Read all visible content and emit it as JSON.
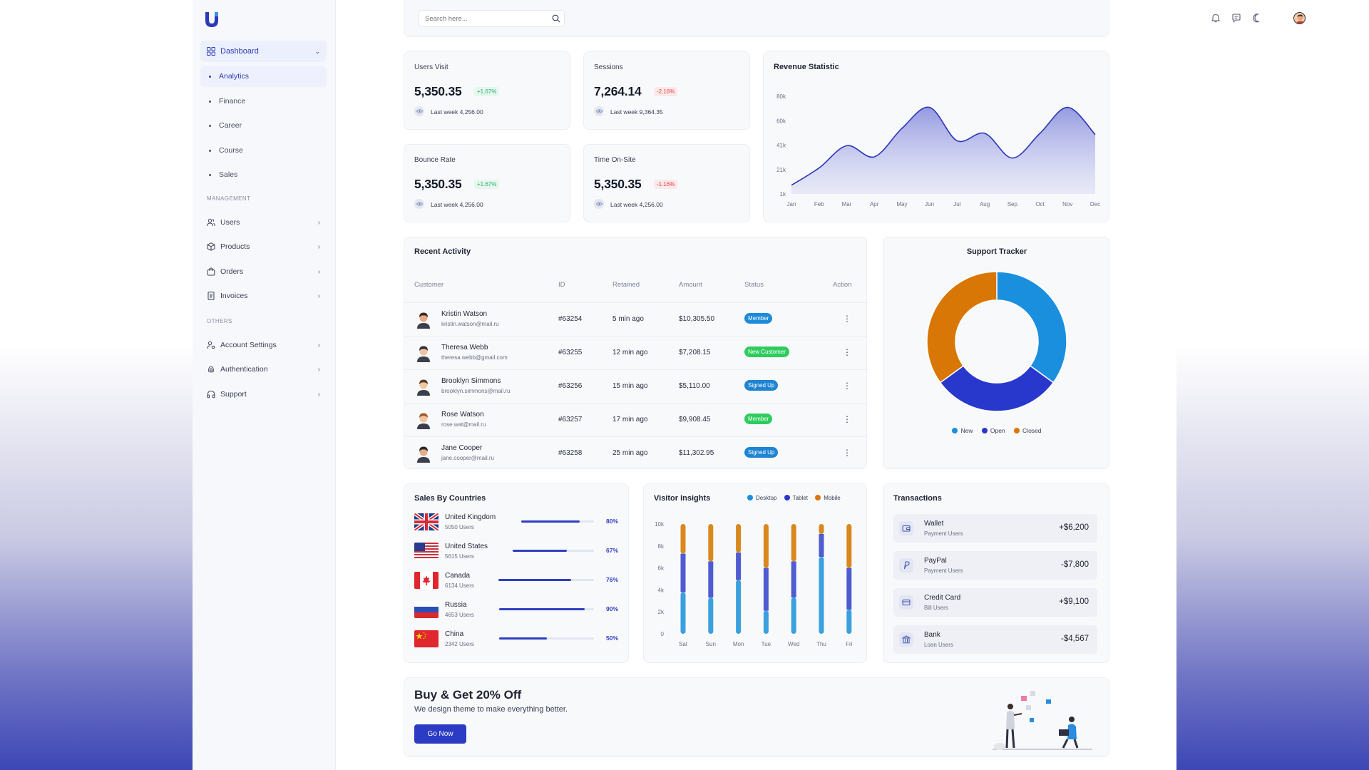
{
  "search": {
    "placeholder": "Search here..."
  },
  "sidebar": {
    "parent": {
      "label": "Dashboard",
      "icon": "grid-icon"
    },
    "subitems": [
      {
        "label": "Analytics",
        "active": true
      },
      {
        "label": "Finance"
      },
      {
        "label": "Career"
      },
      {
        "label": "Course"
      },
      {
        "label": "Sales"
      }
    ],
    "management_label": "MANAGEMENT",
    "management": [
      {
        "label": "Users",
        "icon": "users-icon"
      },
      {
        "label": "Products",
        "icon": "box-icon"
      },
      {
        "label": "Orders",
        "icon": "bag-icon"
      },
      {
        "label": "Invoices",
        "icon": "file-icon"
      }
    ],
    "others_label": "OTHERS",
    "others": [
      {
        "label": "Account Settings",
        "icon": "user-cog-icon"
      },
      {
        "label": "Authentication",
        "icon": "fingerprint-icon"
      },
      {
        "label": "Support",
        "icon": "headphones-icon"
      }
    ]
  },
  "stats": [
    {
      "title": "Users Visit",
      "value": "5,350.35",
      "change": "+1.67%",
      "trend": "up",
      "sub": "Last week 4,256.00"
    },
    {
      "title": "Sessions",
      "value": "7,264.14",
      "change": "-2.16%",
      "trend": "down",
      "sub": "Last week 9,364.35"
    },
    {
      "title": "Bounce Rate",
      "value": "5,350.35",
      "change": "+1.67%",
      "trend": "up",
      "sub": "Last week 4,256.00"
    },
    {
      "title": "Time On-Site",
      "value": "5,350.35",
      "change": "-1.16%",
      "trend": "down",
      "sub": "Last week 4,256.00"
    }
  ],
  "revenue": {
    "title": "Revenue Statistic"
  },
  "activity": {
    "title": "Recent Activity",
    "columns": [
      "Customer",
      "ID",
      "Retained",
      "Amount",
      "Status",
      "Action"
    ],
    "rows": [
      {
        "name": "Kristin Watson",
        "email": "kristin.watson@mail.ru",
        "id": "#63254",
        "retained": "5 min ago",
        "amount": "$10,305.50",
        "status": "Member",
        "status_color": "#1d8bd8",
        "skin": "#e7a983",
        "hair": "#3b2a24"
      },
      {
        "name": "Theresa Webb",
        "email": "theresa.webb@gmail.com",
        "id": "#63255",
        "retained": "12 min ago",
        "amount": "$7,208.15",
        "status": "New Customer",
        "status_color": "#2ecc5e",
        "skin": "#f0c3a0",
        "hair": "#2c2c36"
      },
      {
        "name": "Brooklyn Simmons",
        "email": "brooklyn.simmons@mail.ru",
        "id": "#63256",
        "retained": "15 min ago",
        "amount": "$5,110.00",
        "status": "Signed Up",
        "status_color": "#1f84d2",
        "skin": "#f2c6a2",
        "hair": "#5a3c25"
      },
      {
        "name": "Rose Watson",
        "email": "rose.wat@mail.ru",
        "id": "#63257",
        "retained": "17 min ago",
        "amount": "$9,908.45",
        "status": "Member",
        "status_color": "#2ecc5e",
        "skin": "#f1c39e",
        "hair": "#a05a2c"
      },
      {
        "name": "Jane Cooper",
        "email": "jane.cooper@mail.ru",
        "id": "#63258",
        "retained": "25 min ago",
        "amount": "$11,302.95",
        "status": "Signed Up",
        "status_color": "#1f84d2",
        "skin": "#e3ad86",
        "hair": "#2a2a2a"
      }
    ]
  },
  "support": {
    "title": "Support Tracker",
    "legend": [
      {
        "label": "New",
        "color": "#1a8fde"
      },
      {
        "label": "Open",
        "color": "#2838cc"
      },
      {
        "label": "Closed",
        "color": "#d97706"
      }
    ]
  },
  "countries": {
    "title": "Sales By Countries",
    "items": [
      {
        "name": "United Kingdom",
        "users": "5050 Users",
        "pct": "80%",
        "value": 80,
        "flag": "uk"
      },
      {
        "name": "United States",
        "users": "5615 Users",
        "pct": "67%",
        "value": 67,
        "flag": "us"
      },
      {
        "name": "Canada",
        "users": "6134 Users",
        "pct": "76%",
        "value": 76,
        "flag": "ca"
      },
      {
        "name": "Russia",
        "users": "4653 Users",
        "pct": "90%",
        "value": 90,
        "flag": "ru"
      },
      {
        "name": "China",
        "users": "2342 Users",
        "pct": "50%",
        "value": 50,
        "flag": "cn"
      }
    ]
  },
  "visitor": {
    "title": "Visitor Insights",
    "legend": [
      {
        "label": "Desktop",
        "color": "#1a8fde"
      },
      {
        "label": "Tablet",
        "color": "#2838cc"
      },
      {
        "label": "Mobile",
        "color": "#d97706"
      }
    ]
  },
  "transactions": {
    "title": "Transactions",
    "items": [
      {
        "name": "Wallet",
        "sub": "Payment Users",
        "amount": "+$6,200",
        "icon": "wallet-icon"
      },
      {
        "name": "PayPal",
        "sub": "Payment Users",
        "amount": "-$7,800",
        "icon": "paypal-icon"
      },
      {
        "name": "Credit Card",
        "sub": "Bill Users",
        "amount": "+$9,100",
        "icon": "credit-card-icon"
      },
      {
        "name": "Bank",
        "sub": "Loan Users",
        "amount": "-$4,567",
        "icon": "bank-icon"
      }
    ]
  },
  "promo": {
    "title": "Buy & Get 20% Off",
    "subtitle": "We design theme to make everything better.",
    "button": "Go Now"
  },
  "chart_data": [
    {
      "type": "area",
      "title": "Revenue Statistic",
      "categories": [
        "Jan",
        "Feb",
        "Mar",
        "Apr",
        "May",
        "Jun",
        "Jul",
        "Aug",
        "Sep",
        "Oct",
        "Nov",
        "Dec"
      ],
      "y_ticks": [
        "80k",
        "60k",
        "41k",
        "21k",
        "1k"
      ],
      "ylim": [
        1,
        80
      ],
      "values": [
        8,
        22,
        40,
        31,
        54,
        71,
        44,
        50,
        30,
        50,
        71,
        49
      ],
      "color": "#2b35b8"
    },
    {
      "type": "pie",
      "title": "Support Tracker",
      "donut": true,
      "labels": [
        "New",
        "Open",
        "Closed"
      ],
      "values": [
        35,
        30,
        35
      ],
      "colors": [
        "#1a8fde",
        "#2838cc",
        "#d97706"
      ]
    },
    {
      "type": "bar",
      "stacked": true,
      "title": "Visitor Insights",
      "categories": [
        "Sat",
        "Sun",
        "Mon",
        "Tue",
        "Wed",
        "Thu",
        "Fri"
      ],
      "y_ticks": [
        "10k",
        "8k",
        "6k",
        "4k",
        "2k",
        "0"
      ],
      "ylim": [
        0,
        10000
      ],
      "series": [
        {
          "name": "Desktop",
          "values": [
            3800,
            3300,
            4900,
            2100,
            3300,
            7000,
            2200
          ],
          "color": "#3aa0de"
        },
        {
          "name": "Tablet",
          "values": [
            3500,
            3300,
            2500,
            3900,
            3300,
            2100,
            3800
          ],
          "color": "#4f5bd1"
        },
        {
          "name": "Mobile",
          "values": [
            2700,
            3400,
            2600,
            4000,
            3400,
            900,
            4000
          ],
          "color": "#d9881e"
        }
      ]
    }
  ]
}
